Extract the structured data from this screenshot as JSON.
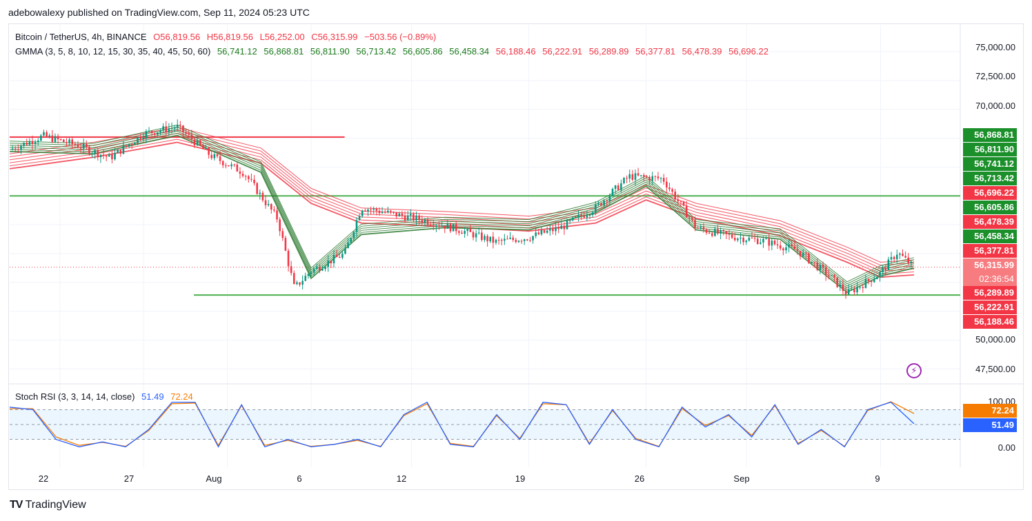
{
  "publisher": "adebowalexy published on TradingView.com, Sep 11, 2024 05:23 UTC",
  "symbol": {
    "title": "Bitcoin / TetherUS, 4h, BINANCE",
    "open": "O56,819.56",
    "high": "H56,819.56",
    "low": "L56,252.00",
    "close": "C56,315.99",
    "change": "−503.56 (−0.89%)"
  },
  "gmma": {
    "label": "GMMA (3, 5, 8, 10, 12, 15, 30, 35, 40, 45, 50, 60)",
    "short_values": [
      "56,741.12",
      "56,868.81",
      "56,811.90",
      "56,713.42",
      "56,605.86",
      "56,458.34"
    ],
    "long_values": [
      "56,188.46",
      "56,222.91",
      "56,289.89",
      "56,377.81",
      "56,478.39",
      "56,696.22"
    ]
  },
  "price_tags": [
    {
      "text": "56,868.81",
      "color": "green"
    },
    {
      "text": "56,811.90",
      "color": "green"
    },
    {
      "text": "56,741.12",
      "color": "green"
    },
    {
      "text": "56,713.42",
      "color": "green"
    },
    {
      "text": "56,696.22",
      "color": "red"
    },
    {
      "text": "56,605.86",
      "color": "green"
    },
    {
      "text": "56,478.39",
      "color": "red"
    },
    {
      "text": "56,458.34",
      "color": "green"
    },
    {
      "text": "56,377.81",
      "color": "red"
    }
  ],
  "current_price": {
    "price": "56,315.99",
    "countdown": "02:36:54"
  },
  "price_tags_below": [
    {
      "text": "56,289.89",
      "color": "red"
    },
    {
      "text": "56,222.91",
      "color": "red"
    },
    {
      "text": "56,188.46",
      "color": "red"
    }
  ],
  "stoch": {
    "label": "Stoch RSI (3, 3, 14, 14, close)",
    "k": "51.49",
    "d": "72.24",
    "k_color": "#2962ff",
    "d_color": "#f57c00"
  },
  "logo": "TradingView",
  "colors": {
    "up": "#089981",
    "down": "#f23645",
    "short_ema": "#2e7d32",
    "long_ema": "#f23645",
    "hline": "#4caf50"
  },
  "chart_data": {
    "type": "line",
    "y_ticks": [
      "75,000.00",
      "72,500.00",
      "70,000.00",
      "50,000.00",
      "47,500.00"
    ],
    "ylim": [
      46500,
      76500
    ],
    "x_ticks": [
      "22",
      "27",
      "Aug",
      "6",
      "12",
      "19",
      "26",
      "Sep",
      "9"
    ],
    "stoch_ticks": [
      "100.00",
      "0.00"
    ],
    "horizontal_lines": [
      {
        "price": 67600,
        "from": "Jul 19",
        "to": "Aug 8",
        "color": "#f23645"
      },
      {
        "price": 62500,
        "from": "Jul 19",
        "to": "Sep 11",
        "color": "#4caf50"
      },
      {
        "price": 53900,
        "from": "Jul 30",
        "to": "Sep 11",
        "color": "#4caf50"
      }
    ],
    "price_close_series": {
      "name": "",
      "x": [
        "Jul 19",
        "Jul 21",
        "Jul 23",
        "Jul 25",
        "Jul 27",
        "Jul 29",
        "Jul 31",
        "Aug 2",
        "Aug 4",
        "Aug 5",
        "Aug 6",
        "Aug 8",
        "Aug 9",
        "Aug 11",
        "Aug 13",
        "Aug 15",
        "Aug 17",
        "Aug 19",
        "Aug 21",
        "Aug 23",
        "Aug 25",
        "Aug 27",
        "Aug 29",
        "Aug 31",
        "Sep 2",
        "Sep 4",
        "Sep 6",
        "Sep 7",
        "Sep 9",
        "Sep 10",
        "Sep 11"
      ],
      "values": [
        66500,
        67700,
        66900,
        65800,
        67900,
        68500,
        66000,
        64500,
        60500,
        54500,
        56000,
        57500,
        61500,
        60900,
        60300,
        59500,
        58500,
        58900,
        59800,
        61500,
        64200,
        64000,
        59700,
        59000,
        58600,
        57800,
        55500,
        54000,
        55800,
        57600,
        56300
      ]
    },
    "gmma_short_band": {
      "x": [
        "Jul 19",
        "Jul 24",
        "Jul 29",
        "Aug 3",
        "Aug 6",
        "Aug 9",
        "Aug 14",
        "Aug 19",
        "Aug 23",
        "Aug 26",
        "Aug 29",
        "Sep 3",
        "Sep 7",
        "Sep 9",
        "Sep 11"
      ],
      "values": [
        66800,
        66600,
        68200,
        65000,
        55800,
        59600,
        60200,
        60000,
        61500,
        63800,
        60000,
        59200,
        54600,
        56000,
        56700
      ]
    },
    "gmma_long_band": {
      "x": [
        "Jul 19",
        "Jul 24",
        "Jul 29",
        "Aug 3",
        "Aug 6",
        "Aug 9",
        "Aug 14",
        "Aug 19",
        "Aug 23",
        "Aug 26",
        "Aug 29",
        "Sep 3",
        "Sep 7",
        "Sep 9",
        "Sep 11"
      ],
      "values": [
        65500,
        66500,
        67800,
        66000,
        62500,
        60800,
        60500,
        60100,
        60800,
        62800,
        61200,
        59700,
        57400,
        56100,
        56300
      ]
    },
    "stoch_rsi": {
      "x_count": 40,
      "k": [
        85,
        80,
        20,
        5,
        15,
        5,
        40,
        95,
        95,
        5,
        90,
        5,
        20,
        5,
        10,
        20,
        5,
        70,
        95,
        10,
        5,
        70,
        20,
        95,
        90,
        10,
        80,
        20,
        5,
        85,
        45,
        70,
        25,
        90,
        10,
        40,
        5,
        80,
        95,
        51.49
      ],
      "d": [
        82,
        82,
        25,
        8,
        14,
        6,
        38,
        92,
        93,
        8,
        88,
        8,
        18,
        6,
        10,
        18,
        6,
        68,
        92,
        12,
        6,
        68,
        22,
        92,
        90,
        12,
        78,
        22,
        6,
        82,
        48,
        68,
        28,
        88,
        12,
        38,
        6,
        78,
        96,
        72.24
      ]
    }
  }
}
